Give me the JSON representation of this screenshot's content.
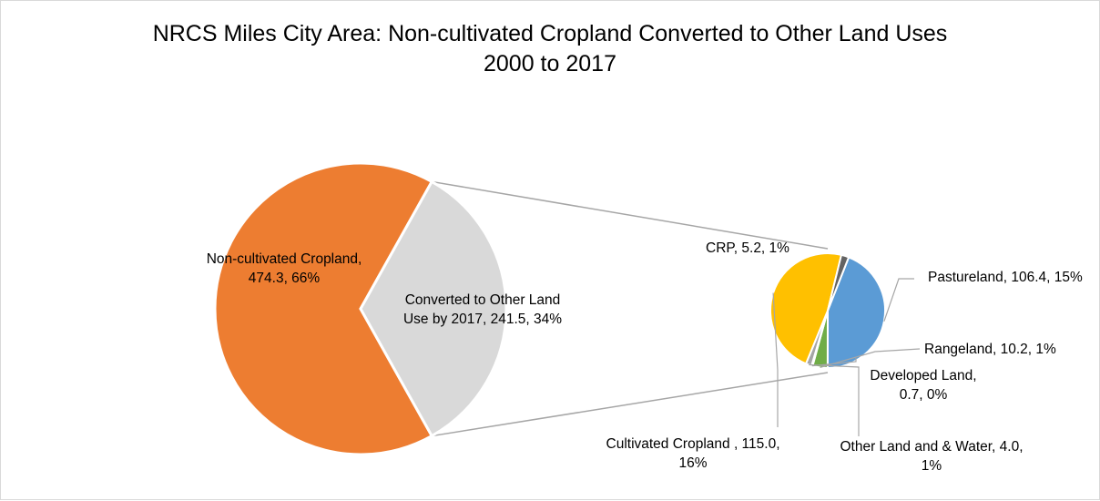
{
  "chart_data": {
    "type": "pie-of-pie",
    "title_line1": "NRCS Miles City Area: Non-cultivated Cropland Converted to Other Land Uses",
    "title_line2": "2000 to 2017",
    "primary": [
      {
        "name": "Non-cultivated Cropland",
        "value": 474.3,
        "percent": "66%",
        "color": "#ED7D31",
        "label_lines": [
          "Non-cultivated Cropland,",
          "474.3, 66%"
        ]
      },
      {
        "name": "Converted to Other Land Use by 2017",
        "value": 241.5,
        "percent": "34%",
        "color": "#D9D9D9",
        "label_lines": [
          "Converted to Other Land",
          "Use by 2017, 241.5, 34%"
        ]
      }
    ],
    "secondary": [
      {
        "name": "Pastureland",
        "value": 106.4,
        "percent": "15%",
        "color": "#5B9BD5",
        "label_lines": [
          "Pastureland, 106.4, 15%"
        ]
      },
      {
        "name": "Rangeland",
        "value": 10.2,
        "percent": "1%",
        "color": "#70AD47",
        "label_lines": [
          "Rangeland, 10.2, 1%"
        ]
      },
      {
        "name": "Developed Land",
        "value": 0.7,
        "percent": "0%",
        "color": "#264478",
        "label_lines": [
          "Developed Land,",
          "0.7, 0%"
        ]
      },
      {
        "name": "Other Land and & Water",
        "value": 4.0,
        "percent": "1%",
        "color": "#A5A5A5",
        "label_lines": [
          "Other Land and & Water, 4.0,",
          "1%"
        ]
      },
      {
        "name": "Cultivated Cropland",
        "value": 115.0,
        "percent": "16%",
        "color": "#FFC000",
        "label_lines": [
          "Cultivated Cropland , 115.0,",
          "16%"
        ]
      },
      {
        "name": "CRP",
        "value": 5.2,
        "percent": "1%",
        "color": "#636363",
        "label_lines": [
          "CRP, 5.2, 1%"
        ]
      }
    ]
  }
}
